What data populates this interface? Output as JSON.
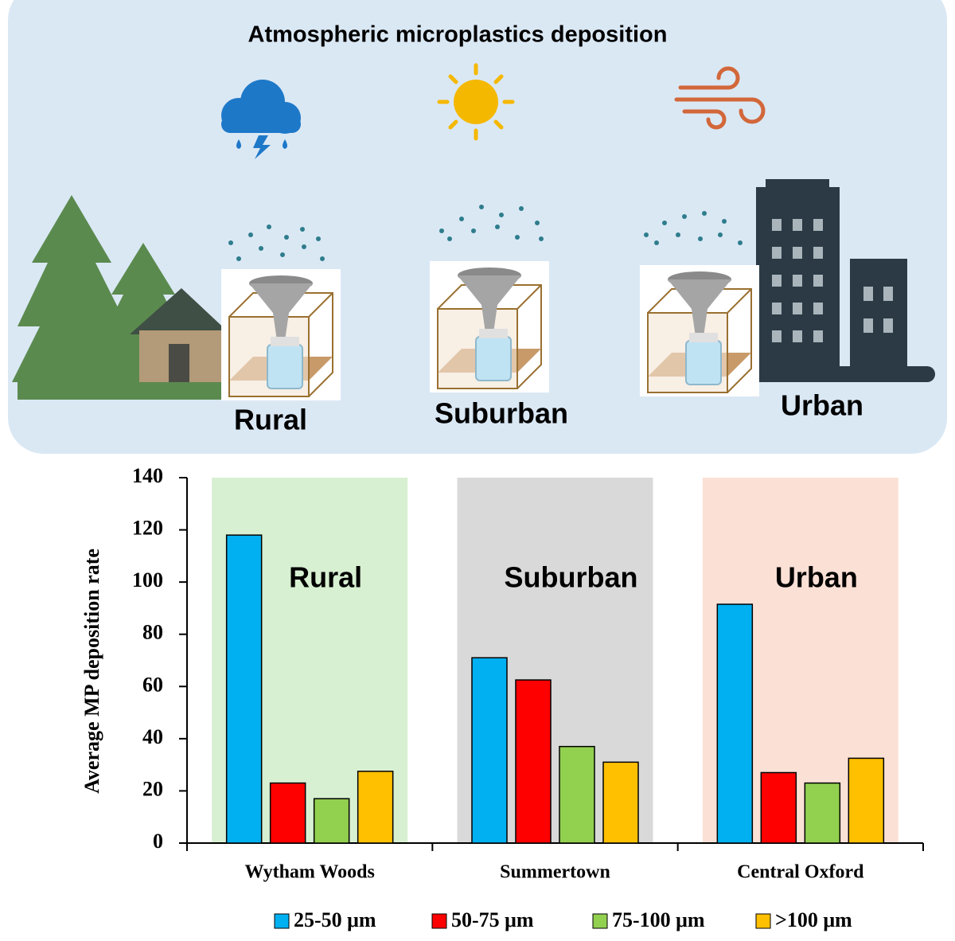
{
  "illustration": {
    "title": "Atmospheric microplastics deposition",
    "labels": [
      "Rural",
      "Suburban",
      "Urban"
    ]
  },
  "chart_data": {
    "type": "bar",
    "y_label": "Average MP deposition rate",
    "categories": [
      "Wytham Woods",
      "Summertown",
      "Central Oxford"
    ],
    "panel_labels": [
      "Rural",
      "Suburban",
      "Urban"
    ],
    "panel_colors": [
      "#d8f0d2",
      "#d9d9d9",
      "#fbe0d6"
    ],
    "series": [
      {
        "name": "25-50 μm",
        "color": "#00b0f0",
        "values": [
          118,
          71,
          91.5
        ]
      },
      {
        "name": "50-75 μm",
        "color": "#ff0000",
        "values": [
          23,
          62.5,
          27
        ]
      },
      {
        "name": "75-100 μm",
        "color": "#92d050",
        "values": [
          17,
          37,
          23
        ]
      },
      {
        "name": ">100 μm",
        "color": "#ffc000",
        "values": [
          27.5,
          31,
          32.5
        ]
      }
    ],
    "ylim": [
      0,
      140
    ],
    "yticks": [
      0,
      20,
      40,
      60,
      80,
      100,
      120,
      140
    ],
    "grid": false
  }
}
